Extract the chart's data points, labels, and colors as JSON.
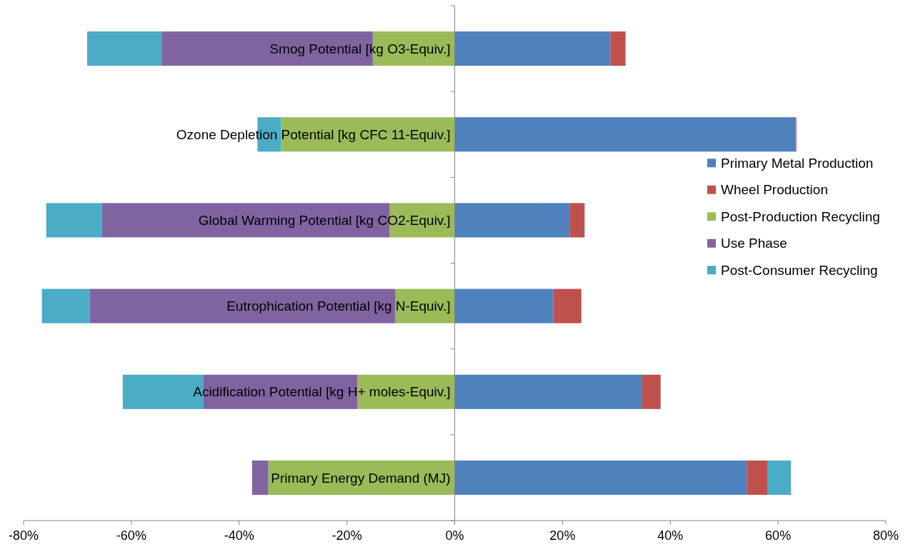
{
  "chart_data": {
    "type": "bar",
    "orientation": "horizontal",
    "stacked": true,
    "categories": [
      "Smog Potential [kg O3-Equiv.]",
      "Ozone Depletion Potential [kg CFC 11-Equiv.]",
      "Global Warming Potential [kg CO2-Equiv.]",
      "Eutrophication Potential [kg N-Equiv.]",
      "Acidification Potential [kg H+ moles-Equiv.]",
      "Primary Energy Demand (MJ)"
    ],
    "series": [
      {
        "name": "Primary Metal Production",
        "color": "#4f81bd",
        "values": [
          28.9,
          63.2,
          21.3,
          18.3,
          34.8,
          54.2
        ]
      },
      {
        "name": "Wheel Production",
        "color": "#c0504d",
        "values": [
          2.8,
          0.2,
          2.8,
          5.2,
          3.4,
          3.8
        ]
      },
      {
        "name": "Post-Production Recycling",
        "color": "#9bbb59",
        "values": [
          -15.2,
          -32.2,
          -12.1,
          -11.0,
          -18.1,
          -34.6
        ]
      },
      {
        "name": "Use Phase",
        "color": "#8064a2",
        "values": [
          -39.2,
          0,
          -53.4,
          -56.7,
          -28.5,
          -3.0
        ]
      },
      {
        "name": "Post-Consumer Recycling",
        "color": "#4bacc6",
        "values": [
          -13.8,
          -4.4,
          -10.3,
          -8.9,
          -15.0,
          4.4
        ]
      }
    ],
    "xlim": [
      -80,
      80
    ],
    "xticks": [
      {
        "value": -80,
        "label": "-80%"
      },
      {
        "value": -60,
        "label": "-60%"
      },
      {
        "value": -40,
        "label": "-40%"
      },
      {
        "value": -20,
        "label": "-20%"
      },
      {
        "value": 0,
        "label": "0%"
      },
      {
        "value": 20,
        "label": "20%"
      },
      {
        "value": 40,
        "label": "40%"
      },
      {
        "value": 60,
        "label": "60%"
      },
      {
        "value": 80,
        "label": "80%"
      }
    ],
    "legend": "right",
    "grid": false
  }
}
